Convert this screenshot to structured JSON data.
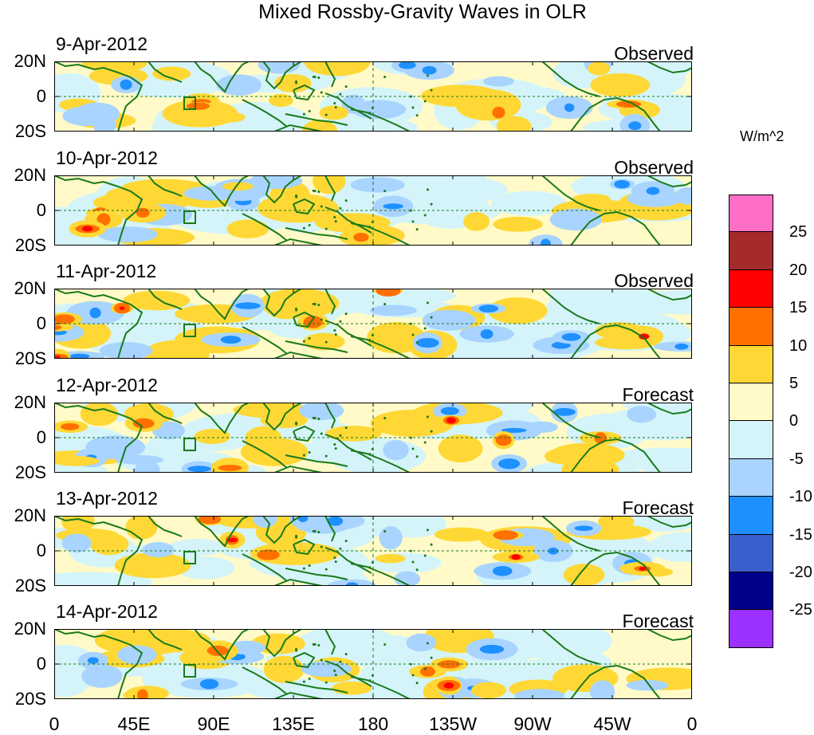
{
  "title": "Mixed Rossby-Gravity Waves in OLR",
  "colorbar": {
    "unit": "W/m^2",
    "colors": [
      "#ff6ec7",
      "#a52a2a",
      "#ff0000",
      "#ff7000",
      "#ffd835",
      "#fffac8",
      "#d4f4fa",
      "#a8d4ff",
      "#1e90ff",
      "#3a5fcd",
      "#00008b",
      "#9b30ff"
    ],
    "labels": [
      "25",
      "20",
      "15",
      "10",
      "5",
      "0",
      "-5",
      "-10",
      "-15",
      "-20",
      "-25"
    ]
  },
  "lat_labels": [
    "20N",
    "0",
    "20S"
  ],
  "lon_labels": [
    "0",
    "45E",
    "90E",
    "135E",
    "180",
    "135W",
    "90W",
    "45W",
    "0"
  ],
  "panels": [
    {
      "date": "9-Apr-2012",
      "kind": "Observed"
    },
    {
      "date": "10-Apr-2012",
      "kind": "Observed"
    },
    {
      "date": "11-Apr-2012",
      "kind": "Observed"
    },
    {
      "date": "12-Apr-2012",
      "kind": "Forecast"
    },
    {
      "date": "13-Apr-2012",
      "kind": "Forecast"
    },
    {
      "date": "14-Apr-2012",
      "kind": "Forecast"
    }
  ]
}
